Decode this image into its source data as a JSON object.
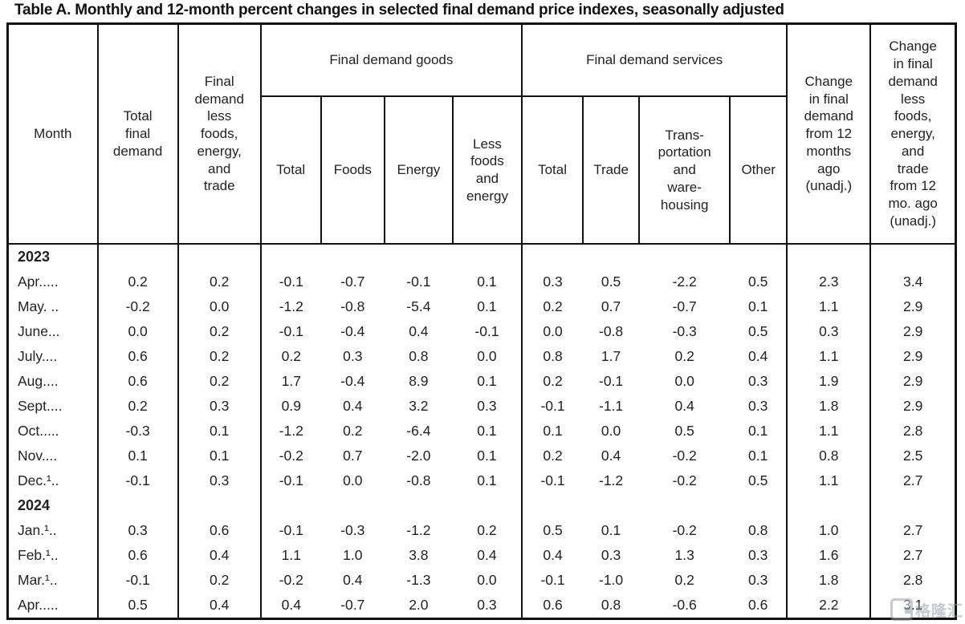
{
  "title": "Table A. Monthly and 12-month percent changes in selected final demand price indexes, seasonally adjusted",
  "watermark": {
    "text": "格隆汇"
  },
  "table": {
    "header": {
      "month": "Month",
      "total_final_demand": "Total\nfinal\ndemand",
      "less_fet": "Final\ndemand\nless\nfoods,\nenergy,\nand\ntrade",
      "goods_group": "Final demand goods",
      "services_group": "Final demand services",
      "goods_cols": [
        "Total",
        "Foods",
        "Energy",
        "Less\nfoods\nand\nenergy"
      ],
      "services_cols": [
        "Total",
        "Trade",
        "Trans-\nportation\nand\nware-\nhousing",
        "Other"
      ],
      "change_12mo": "Change\nin final\ndemand\nfrom 12\nmonths\nago\n(unadj.)",
      "change_12mo_less": "Change\nin final\ndemand\nless\nfoods,\nenergy,\nand\ntrade\nfrom 12\nmo. ago\n(unadj.)"
    },
    "sections": [
      {
        "year": "2023",
        "rows": [
          {
            "month": "Apr.....",
            "values": [
              "0.2",
              "0.2",
              "-0.1",
              "-0.7",
              "-0.1",
              "0.1",
              "0.3",
              "0.5",
              "-2.2",
              "0.5",
              "2.3",
              "3.4"
            ]
          },
          {
            "month": "May. ..",
            "values": [
              "-0.2",
              "0.0",
              "-1.2",
              "-0.8",
              "-5.4",
              "0.1",
              "0.2",
              "0.7",
              "-0.7",
              "0.1",
              "1.1",
              "2.9"
            ]
          },
          {
            "month": "June...",
            "values": [
              "0.0",
              "0.2",
              "-0.1",
              "-0.4",
              "0.4",
              "-0.1",
              "0.0",
              "-0.8",
              "-0.3",
              "0.5",
              "0.3",
              "2.9"
            ]
          },
          {
            "month": "July....",
            "values": [
              "0.6",
              "0.2",
              "0.2",
              "0.3",
              "0.8",
              "0.0",
              "0.8",
              "1.7",
              "0.2",
              "0.4",
              "1.1",
              "2.9"
            ]
          },
          {
            "month": "Aug....",
            "values": [
              "0.6",
              "0.2",
              "1.7",
              "-0.4",
              "8.9",
              "0.1",
              "0.2",
              "-0.1",
              "0.0",
              "0.3",
              "1.9",
              "2.9"
            ]
          },
          {
            "month": "Sept....",
            "values": [
              "0.2",
              "0.3",
              "0.9",
              "0.4",
              "3.2",
              "0.3",
              "-0.1",
              "-1.1",
              "0.4",
              "0.3",
              "1.8",
              "2.9"
            ]
          },
          {
            "month": "Oct.....",
            "values": [
              "-0.3",
              "0.1",
              "-1.2",
              "0.2",
              "-6.4",
              "0.1",
              "0.1",
              "0.0",
              "0.5",
              "0.1",
              "1.1",
              "2.8"
            ]
          },
          {
            "month": "Nov....",
            "values": [
              "0.1",
              "0.1",
              "-0.2",
              "0.7",
              "-2.0",
              "0.1",
              "0.2",
              "0.4",
              "-0.2",
              "0.1",
              "0.8",
              "2.5"
            ]
          },
          {
            "month": "Dec.¹..",
            "values": [
              "-0.1",
              "0.3",
              "-0.1",
              "0.0",
              "-0.8",
              "0.1",
              "-0.1",
              "-1.2",
              "-0.2",
              "0.5",
              "1.1",
              "2.7"
            ]
          }
        ]
      },
      {
        "year": "2024",
        "rows": [
          {
            "month": "Jan.¹..",
            "values": [
              "0.3",
              "0.6",
              "-0.1",
              "-0.3",
              "-1.2",
              "0.2",
              "0.5",
              "0.1",
              "-0.2",
              "0.8",
              "1.0",
              "2.7"
            ]
          },
          {
            "month": "Feb.¹..",
            "values": [
              "0.6",
              "0.4",
              "1.1",
              "1.0",
              "3.8",
              "0.4",
              "0.4",
              "0.3",
              "1.3",
              "0.3",
              "1.6",
              "2.7"
            ]
          },
          {
            "month": "Mar.¹..",
            "values": [
              "-0.1",
              "0.2",
              "-0.2",
              "0.4",
              "-1.3",
              "0.0",
              "-0.1",
              "-1.0",
              "0.2",
              "0.3",
              "1.8",
              "2.8"
            ]
          },
          {
            "month": "Apr.....",
            "values": [
              "0.5",
              "0.4",
              "0.4",
              "-0.7",
              "2.0",
              "0.3",
              "0.6",
              "0.8",
              "-0.6",
              "0.6",
              "2.2",
              "3.1"
            ]
          }
        ]
      }
    ]
  }
}
